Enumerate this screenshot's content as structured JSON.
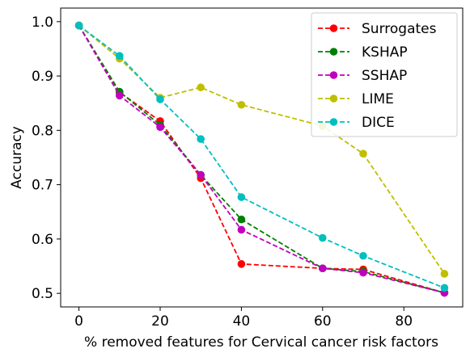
{
  "chart_data": {
    "type": "line",
    "title": "",
    "xlabel": "% removed features for Cervical cancer risk factors",
    "ylabel": "Accuracy",
    "xlim": [
      -4.5,
      94.5
    ],
    "ylim": [
      0.475,
      1.025
    ],
    "xticks": [
      0,
      20,
      40,
      60,
      80
    ],
    "yticks": [
      0.5,
      0.6,
      0.7,
      0.8,
      0.9,
      1.0
    ],
    "xtick_labels": [
      "0",
      "20",
      "40",
      "60",
      "80"
    ],
    "ytick_labels": [
      "0.5",
      "0.6",
      "0.7",
      "0.8",
      "0.9",
      "1.0"
    ],
    "grid": false,
    "legend_position": "top-right",
    "line_style": "dashed",
    "marker": "circle",
    "series": [
      {
        "name": "Surrogates",
        "color": "#ff0000",
        "x": [
          0,
          10,
          20,
          30,
          40,
          60,
          70,
          90
        ],
        "y": [
          0.993,
          0.87,
          0.817,
          0.712,
          0.554,
          0.546,
          0.544,
          0.501
        ]
      },
      {
        "name": "KSHAP",
        "color": "#008000",
        "x": [
          0,
          10,
          20,
          30,
          40,
          60,
          70,
          90
        ],
        "y": [
          0.993,
          0.871,
          0.81,
          0.718,
          0.636,
          0.546,
          0.54,
          0.501
        ]
      },
      {
        "name": "SSHAP",
        "color": "#bf00bf",
        "x": [
          0,
          10,
          20,
          30,
          40,
          60,
          70,
          90
        ],
        "y": [
          0.993,
          0.864,
          0.806,
          0.718,
          0.617,
          0.546,
          0.538,
          0.501
        ]
      },
      {
        "name": "LIME",
        "color": "#bfbf00",
        "x": [
          0,
          10,
          20,
          30,
          40,
          60,
          70,
          90
        ],
        "y": [
          0.993,
          0.932,
          0.86,
          0.879,
          0.847,
          0.808,
          0.757,
          0.536
        ]
      },
      {
        "name": "DICE",
        "color": "#00bfbf",
        "x": [
          0,
          10,
          20,
          30,
          40,
          60,
          70,
          90
        ],
        "y": [
          0.993,
          0.937,
          0.857,
          0.784,
          0.677,
          0.602,
          0.569,
          0.51
        ]
      }
    ]
  }
}
